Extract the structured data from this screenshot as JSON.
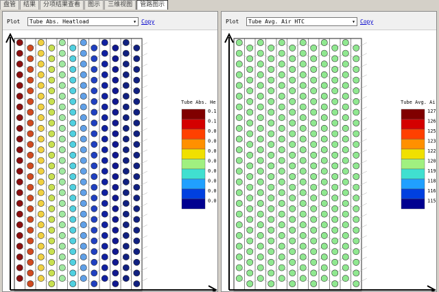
{
  "tabs": [
    "盘管",
    "结果",
    "分项结果查看",
    "图示",
    "三维视图",
    "管路图示"
  ],
  "active_tab": 5,
  "panels": [
    {
      "plot_label": "Plot",
      "selection": "Tube Abs. Heatload",
      "copy": "Copy",
      "legend": {
        "title": "Tube Abs. He",
        "labels": [
          "0.1",
          "0.1",
          "0.0",
          "0.0",
          "0.0",
          "0.0",
          "0.0",
          "0.0",
          "0.0",
          "0.0"
        ]
      }
    },
    {
      "plot_label": "Plot",
      "selection": "Tube Avg. Air HTC",
      "copy": "Copy",
      "legend": {
        "title": "Tube Avg. Ai",
        "labels": [
          "127",
          "126",
          "125",
          "123",
          "122",
          "120",
          "119",
          "118",
          "116",
          "115"
        ]
      }
    }
  ]
}
